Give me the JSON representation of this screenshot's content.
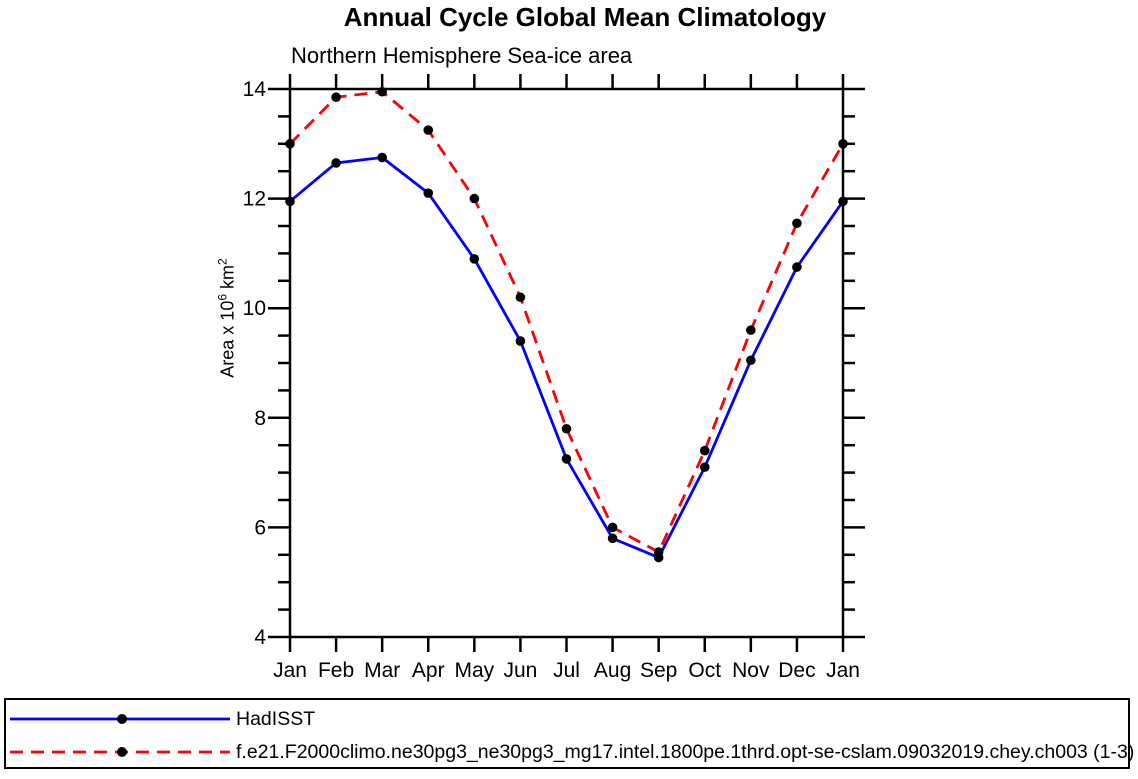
{
  "chart_data": {
    "type": "line",
    "title": "Annual Cycle Global Mean Climatology",
    "subtitle": "Northern Hemisphere Sea-ice area",
    "ylabel": "Area x 10^6 km^2",
    "ylabel_parts": {
      "base1": "Area x 10",
      "sup1": "6",
      "base2": " km",
      "sup2": "2"
    },
    "categories": [
      "Jan",
      "Feb",
      "Mar",
      "Apr",
      "May",
      "Jun",
      "Jul",
      "Aug",
      "Sep",
      "Oct",
      "Nov",
      "Dec",
      "Jan"
    ],
    "ylim": [
      4,
      14
    ],
    "yticks": [
      4,
      6,
      8,
      10,
      12,
      14
    ],
    "y_minor_step": 0.5,
    "grid": false,
    "legend_position": "bottom",
    "axis_color": "#000000",
    "background_color": "#ffffff",
    "series": [
      {
        "name": "HadISST",
        "color": "#0000ff",
        "line_style": "solid",
        "marker": "circle",
        "marker_color": "#000000",
        "values": [
          11.95,
          12.65,
          12.75,
          12.1,
          10.9,
          9.4,
          7.25,
          5.8,
          5.45,
          7.1,
          9.05,
          10.75,
          11.95
        ]
      },
      {
        "name": "f.e21.F2000climo.ne30pg3_ne30pg3_mg17.intel.1800pe.1thrd.opt-se-cslam.09032019.chey.ch003 (1-3)",
        "color": "#ff0000",
        "line_style": "dashed",
        "marker": "circle",
        "marker_color": "#000000",
        "values": [
          13.0,
          13.85,
          13.95,
          13.25,
          12.0,
          10.2,
          7.8,
          6.0,
          5.55,
          7.4,
          9.6,
          11.55,
          13.0
        ]
      }
    ]
  }
}
